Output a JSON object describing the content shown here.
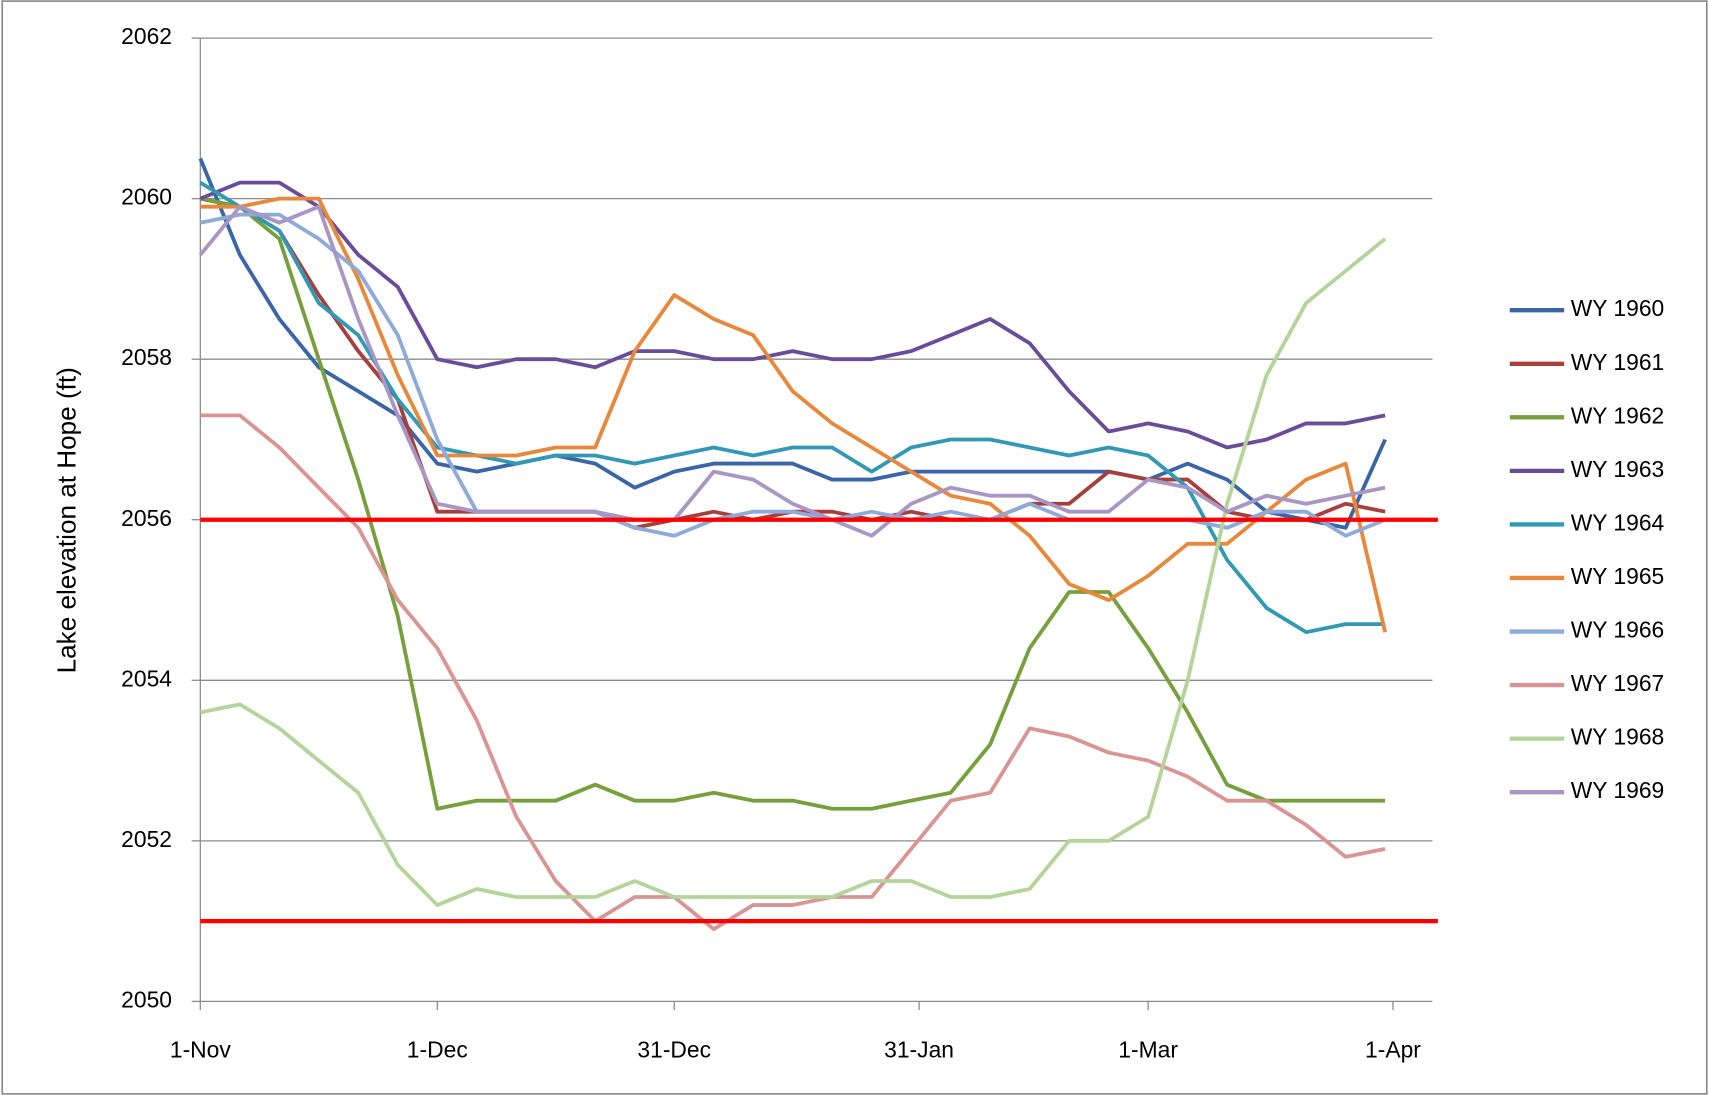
{
  "chart_data": {
    "type": "line",
    "ylabel": "Lake elevation at Hope (ft)",
    "x": [
      0,
      5,
      10,
      15,
      20,
      25,
      30,
      35,
      40,
      45,
      50,
      55,
      60,
      65,
      70,
      75,
      80,
      85,
      90,
      95,
      100,
      105,
      110,
      115,
      120,
      125,
      130,
      135,
      140,
      145,
      150
    ],
    "xlim": [
      0,
      156
    ],
    "xticks": [
      {
        "value": 0,
        "label": "1-Nov"
      },
      {
        "value": 30,
        "label": "1-Dec"
      },
      {
        "value": 60,
        "label": "31-Dec"
      },
      {
        "value": 91,
        "label": "31-Jan"
      },
      {
        "value": 120,
        "label": "1-Mar"
      },
      {
        "value": 151,
        "label": "1-Apr"
      }
    ],
    "ylim": [
      2050,
      2062
    ],
    "yticks": [
      2050,
      2052,
      2054,
      2056,
      2058,
      2060,
      2062
    ],
    "grid": true,
    "legend": "right",
    "reference_lines": {
      "color": "#ff0000",
      "values": [
        2056,
        2051
      ]
    },
    "series": [
      {
        "name": "WY 1960",
        "color": "#3a66a8",
        "values": [
          2060.5,
          2059.3,
          2058.5,
          2057.9,
          2057.6,
          2057.3,
          2056.7,
          2056.6,
          2056.7,
          2056.8,
          2056.7,
          2056.4,
          2056.6,
          2056.7,
          2056.7,
          2056.7,
          2056.5,
          2056.5,
          2056.6,
          2056.6,
          2056.6,
          2056.6,
          2056.6,
          2056.6,
          2056.5,
          2056.7,
          2056.5,
          2056.1,
          2056.0,
          2055.9,
          2057.0
        ]
      },
      {
        "name": "WY 1961",
        "color": "#a5403c",
        "values": [
          2060.0,
          2059.9,
          2059.6,
          2058.8,
          2058.1,
          2057.5,
          2056.1,
          2056.1,
          2056.1,
          2056.1,
          2056.1,
          2055.9,
          2056.0,
          2056.1,
          2056.0,
          2056.1,
          2056.1,
          2056.0,
          2056.1,
          2056.0,
          2056.0,
          2056.2,
          2056.2,
          2056.6,
          2056.5,
          2056.5,
          2056.1,
          2056.0,
          2056.0,
          2056.2,
          2056.1
        ]
      },
      {
        "name": "WY 1962",
        "color": "#77a03d",
        "values": [
          2060.0,
          2059.9,
          2059.5,
          2058.0,
          2056.5,
          2054.8,
          2052.4,
          2052.5,
          2052.5,
          2052.5,
          2052.7,
          2052.5,
          2052.5,
          2052.6,
          2052.5,
          2052.5,
          2052.4,
          2052.4,
          2052.5,
          2052.6,
          2053.2,
          2054.4,
          2055.1,
          2055.1,
          2054.4,
          2053.6,
          2052.7,
          2052.5,
          2052.5,
          2052.5,
          2052.5
        ]
      },
      {
        "name": "WY 1963",
        "color": "#6b4c9a",
        "values": [
          2060.0,
          2060.2,
          2060.2,
          2059.9,
          2059.3,
          2058.9,
          2058.0,
          2057.9,
          2058.0,
          2058.0,
          2057.9,
          2058.1,
          2058.1,
          2058.0,
          2058.0,
          2058.1,
          2058.0,
          2058.0,
          2058.1,
          2058.3,
          2058.5,
          2058.2,
          2057.6,
          2057.1,
          2057.2,
          2057.1,
          2056.9,
          2057.0,
          2057.2,
          2057.2,
          2057.3
        ]
      },
      {
        "name": "WY 1964",
        "color": "#3299b5",
        "values": [
          2060.2,
          2059.9,
          2059.6,
          2058.7,
          2058.3,
          2057.5,
          2056.9,
          2056.8,
          2056.7,
          2056.8,
          2056.8,
          2056.7,
          2056.8,
          2056.9,
          2056.8,
          2056.9,
          2056.9,
          2056.6,
          2056.9,
          2057.0,
          2057.0,
          2056.9,
          2056.8,
          2056.9,
          2056.8,
          2056.4,
          2055.5,
          2054.9,
          2054.6,
          2054.7,
          2054.7
        ]
      },
      {
        "name": "WY 1965",
        "color": "#e8883a",
        "values": [
          2059.9,
          2059.9,
          2060.0,
          2060.0,
          2059.0,
          2057.8,
          2056.8,
          2056.8,
          2056.8,
          2056.9,
          2056.9,
          2058.1,
          2058.8,
          2058.5,
          2058.3,
          2057.6,
          2057.2,
          2056.9,
          2056.6,
          2056.3,
          2056.2,
          2055.8,
          2055.2,
          2055.0,
          2055.3,
          2055.7,
          2055.7,
          2056.1,
          2056.5,
          2056.7,
          2054.6
        ]
      },
      {
        "name": "WY 1966",
        "color": "#8eaad8",
        "values": [
          2059.7,
          2059.8,
          2059.8,
          2059.5,
          2059.1,
          2058.3,
          2057.0,
          2056.1,
          2056.1,
          2056.1,
          2056.1,
          2055.9,
          2055.8,
          2056.0,
          2056.1,
          2056.1,
          2056.0,
          2056.1,
          2056.0,
          2056.1,
          2056.0,
          2056.2,
          2056.0,
          2056.0,
          2056.0,
          2056.0,
          2055.9,
          2056.1,
          2056.1,
          2055.8,
          2056.0
        ]
      },
      {
        "name": "WY 1967",
        "color": "#d99593",
        "values": [
          2057.3,
          2057.3,
          2056.9,
          2056.4,
          2055.9,
          2055.0,
          2054.4,
          2053.5,
          2052.3,
          2051.5,
          2051.0,
          2051.3,
          2051.3,
          2050.9,
          2051.2,
          2051.2,
          2051.3,
          2051.3,
          2051.9,
          2052.5,
          2052.6,
          2053.4,
          2053.3,
          2053.1,
          2053.0,
          2052.8,
          2052.5,
          2052.5,
          2052.2,
          2051.8,
          2051.9
        ]
      },
      {
        "name": "WY 1968",
        "color": "#b5d49a",
        "values": [
          2053.6,
          2053.7,
          2053.4,
          2053.0,
          2052.6,
          2051.7,
          2051.2,
          2051.4,
          2051.3,
          2051.3,
          2051.3,
          2051.5,
          2051.3,
          2051.3,
          2051.3,
          2051.3,
          2051.3,
          2051.5,
          2051.5,
          2051.3,
          2051.3,
          2051.4,
          2052.0,
          2052.0,
          2052.3,
          2054.0,
          2056.2,
          2057.8,
          2058.7,
          2059.1,
          2059.5
        ]
      },
      {
        "name": "WY 1969",
        "color": "#a897c4",
        "values": [
          2059.3,
          2059.9,
          2059.7,
          2059.9,
          2058.5,
          2057.3,
          2056.2,
          2056.1,
          2056.1,
          2056.1,
          2056.1,
          2056.0,
          2056.0,
          2056.6,
          2056.5,
          2056.2,
          2056.0,
          2055.8,
          2056.2,
          2056.4,
          2056.3,
          2056.3,
          2056.1,
          2056.1,
          2056.5,
          2056.4,
          2056.1,
          2056.3,
          2056.2,
          2056.3,
          2056.4
        ]
      }
    ]
  }
}
